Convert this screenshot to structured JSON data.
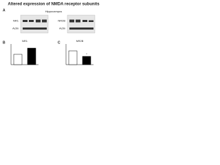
{
  "title": "Altered expression of NMDA receptor subunits",
  "panel_labels": [
    "A",
    "B",
    "C"
  ],
  "region": "Hippocampus",
  "blots": [
    {
      "labels": [
        "NR1",
        "Actin"
      ]
    },
    {
      "labels": [
        "NR2B",
        "Actin"
      ]
    }
  ],
  "chart_data": [
    {
      "type": "bar",
      "title": "NR1",
      "categories": [
        null,
        null
      ],
      "values": [
        1,
        1.6
      ],
      "colors": [
        "#ffffff",
        "#000000"
      ],
      "ylim": [
        0,
        2
      ]
    },
    {
      "type": "bar",
      "title": "NR2B",
      "categories": [
        null,
        null
      ],
      "values": [
        1,
        0.6
      ],
      "colors": [
        "#ffffff",
        "#000000"
      ],
      "ylim": [
        0,
        1.5
      ],
      "annotation": "*"
    }
  ]
}
